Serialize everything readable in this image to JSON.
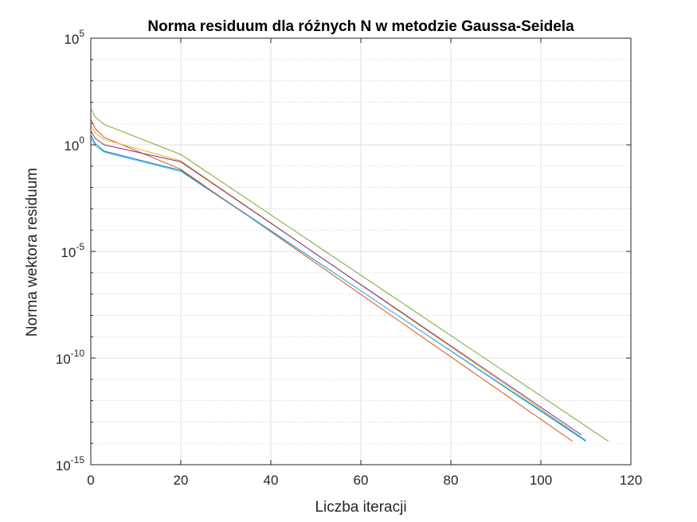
{
  "chart_data": {
    "type": "line",
    "title": "Norma residuum dla różnych N w metodzie Gaussa-Seidela",
    "xlabel": "Liczba iteracji",
    "ylabel": "Norma wektora residuum",
    "xlim": [
      0,
      120
    ],
    "ylim_log10": [
      -15,
      5
    ],
    "y_scale": "log",
    "grid": true,
    "minor_grid": true,
    "x_ticks": [
      0,
      20,
      40,
      60,
      80,
      100,
      120
    ],
    "y_ticks": [
      {
        "base": "10",
        "exp": "5",
        "value": 5
      },
      {
        "base": "10",
        "exp": "0",
        "value": 0
      },
      {
        "base": "10",
        "exp": "-5",
        "value": -5
      },
      {
        "base": "10",
        "exp": "-10",
        "value": -10
      },
      {
        "base": "10",
        "exp": "-15",
        "value": -15
      }
    ],
    "series": [
      {
        "color": "#0072BD",
        "x": [
          0,
          1,
          3,
          20,
          110
        ],
        "y_log10": [
          0.45,
          0.05,
          -0.3,
          -1.2,
          -13.9
        ]
      },
      {
        "color": "#D95319",
        "x": [
          0,
          1,
          3,
          20,
          107
        ],
        "y_log10": [
          1.2,
          0.75,
          0.35,
          -1.15,
          -13.9
        ]
      },
      {
        "color": "#EDB120",
        "x": [
          0,
          1,
          3,
          20,
          109
        ],
        "y_log10": [
          0.9,
          0.55,
          0.25,
          -0.75,
          -13.7
        ]
      },
      {
        "color": "#7E2F8E",
        "x": [
          0,
          1,
          3,
          20,
          109
        ],
        "y_log10": [
          0.65,
          0.3,
          0.0,
          -0.8,
          -13.6
        ]
      },
      {
        "color": "#77AC30",
        "x": [
          0,
          1,
          3,
          20,
          115
        ],
        "y_log10": [
          1.7,
          1.3,
          0.95,
          -0.45,
          -13.9
        ]
      },
      {
        "color": "#4DBEEE",
        "x": [
          0,
          1,
          3,
          20,
          110
        ],
        "y_log10": [
          0.3,
          -0.05,
          -0.35,
          -1.25,
          -13.85
        ]
      }
    ]
  }
}
